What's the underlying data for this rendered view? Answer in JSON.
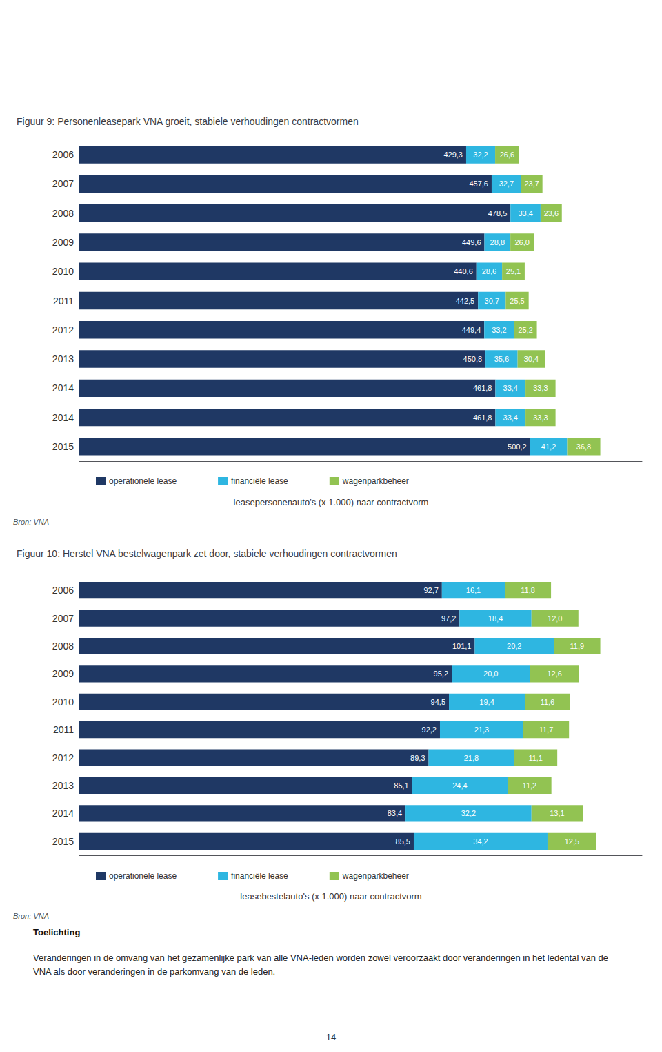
{
  "chart_data": [
    {
      "type": "bar",
      "orientation": "horizontal",
      "stacked": true,
      "data_labels": true,
      "tick_labels": "y",
      "grid": false,
      "legend": "bottom",
      "title": "Figuur 9: Personenleasepark VNA groeit, stabiele verhoudingen contractvormen",
      "xlabel": "leasepersonenauto's (x 1.000) naar contractvorm",
      "categories": [
        "2006",
        "2007",
        "2008",
        "2009",
        "2010",
        "2011",
        "2012",
        "2013",
        "2014",
        "2014",
        "2015"
      ],
      "xlim": [
        0,
        624.456
      ],
      "series": [
        {
          "name": "operationele lease",
          "color": "#1F3864",
          "values": [
            429.3,
            457.6,
            478.5,
            449.6,
            440.6,
            442.5,
            449.4,
            450.8,
            461.8,
            461.8,
            500.2
          ],
          "value_labels": [
            "429,3",
            "457,6",
            "478,5",
            "449,6",
            "440,6",
            "442,5",
            "449,4",
            "450,8",
            "461,8",
            "461,8",
            "500,2"
          ]
        },
        {
          "name": "financiële lease",
          "color": "#2EB6E1",
          "values": [
            32.2,
            32.7,
            33.4,
            28.8,
            28.6,
            30.7,
            33.2,
            35.6,
            33.4,
            33.4,
            41.2
          ],
          "value_labels": [
            "32,2",
            "32,7",
            "33,4",
            "28,8",
            "28,6",
            "30,7",
            "33,2",
            "35,6",
            "33,4",
            "33,4",
            "41,2"
          ]
        },
        {
          "name": "wagenparkbeheer",
          "color": "#92C352",
          "values": [
            26.6,
            23.7,
            23.6,
            26.0,
            25.1,
            25.5,
            25.2,
            30.4,
            33.3,
            33.3,
            36.8
          ],
          "value_labels": [
            "26,6",
            "23,7",
            "23,6",
            "26,0",
            "25,1",
            "25,5",
            "25,2",
            "30,4",
            "33,3",
            "33,3",
            "36,8"
          ]
        }
      ],
      "annotations": [
        "Bron: VNA"
      ]
    },
    {
      "type": "bar",
      "orientation": "horizontal",
      "stacked": true,
      "data_labels": true,
      "tick_labels": "y",
      "grid": false,
      "legend": "bottom",
      "title": "Figuur 10: Herstel VNA bestelwagenpark zet door, stabiele verhoudingen contractvormen",
      "xlabel": "leasebestelauto's (x 1.000) naar contractvorm",
      "categories": [
        "2006",
        "2007",
        "2008",
        "2009",
        "2010",
        "2011",
        "2012",
        "2013",
        "2014",
        "2015"
      ],
      "xlim": [
        0,
        143.856
      ],
      "series": [
        {
          "name": "operationele lease",
          "color": "#1F3864",
          "values": [
            92.7,
            97.2,
            101.1,
            95.2,
            94.5,
            92.2,
            89.3,
            85.1,
            83.4,
            85.5
          ],
          "value_labels": [
            "92,7",
            "97,2",
            "101,1",
            "95,2",
            "94,5",
            "92,2",
            "89,3",
            "85,1",
            "83,4",
            "85,5"
          ]
        },
        {
          "name": "financiële lease",
          "color": "#2EB6E1",
          "values": [
            16.1,
            18.4,
            20.2,
            20.0,
            19.4,
            21.3,
            21.8,
            24.4,
            32.2,
            34.2
          ],
          "value_labels": [
            "16,1",
            "18,4",
            "20,2",
            "20,0",
            "19,4",
            "21,3",
            "21,8",
            "24,4",
            "32,2",
            "34,2"
          ]
        },
        {
          "name": "wagenparkbeheer",
          "color": "#92C352",
          "values": [
            11.8,
            12.0,
            11.9,
            12.6,
            11.6,
            11.7,
            11.1,
            11.2,
            13.1,
            12.5
          ],
          "value_labels": [
            "11,8",
            "12,0",
            "11,9",
            "12,6",
            "11,6",
            "11,7",
            "11,1",
            "11,2",
            "13,1",
            "12,5"
          ]
        }
      ],
      "annotations": [
        "Bron: VNA",
        "Toelichting",
        "Veranderingen in de omvang van het gezamenlijke park van alle VNA-leden worden zowel veroorzaakt door veranderingen in het ledental van de VNA als door veranderingen in de parkomvang van de leden.",
        "14"
      ]
    }
  ]
}
